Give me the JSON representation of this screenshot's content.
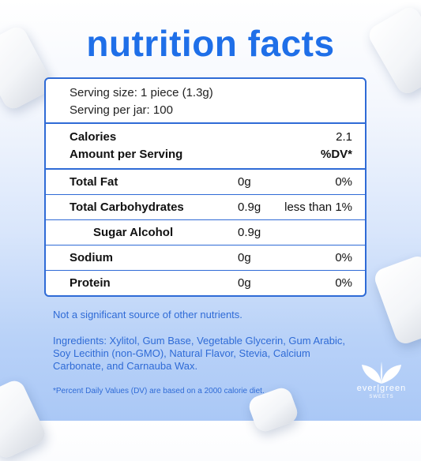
{
  "title": "nutrition facts",
  "serving": {
    "size": "Serving size: 1 piece (1.3g)",
    "per_jar": "Serving per jar: 100"
  },
  "calories": {
    "label": "Calories",
    "value": "2.1"
  },
  "amount_header": {
    "label": "Amount per Serving",
    "dv": "%DV*"
  },
  "nutrients": [
    {
      "label": "Total Fat",
      "amount": "0g",
      "dv": "0%"
    },
    {
      "label": "Total Carbohydrates",
      "amount": "0.9g",
      "dv": "less than 1%"
    },
    {
      "label": "Sugar Alcohol",
      "amount": "0.9g",
      "dv": ""
    },
    {
      "label": "Sodium",
      "amount": "0g",
      "dv": "0%"
    },
    {
      "label": "Protein",
      "amount": "0g",
      "dv": "0%"
    }
  ],
  "note": "Not a significant source of other nutrients.",
  "ingredients": "Ingredients: Xylitol, Gum Base, Vegetable Glycerin, Gum Arabic, Soy Lecithin (non-GMO), Natural Flavor, Stevia, Calcium Carbonate, and Carnauba Wax.",
  "footnote": "*Percent Daily Values (DV) are based on a 2000 calorie diet.",
  "logo": {
    "brand": "ever|green",
    "sub": "SWEETS"
  },
  "colors": {
    "accent": "#1f6fe8",
    "border": "#2f6bd6",
    "background_bottom": "#aac8f6"
  }
}
